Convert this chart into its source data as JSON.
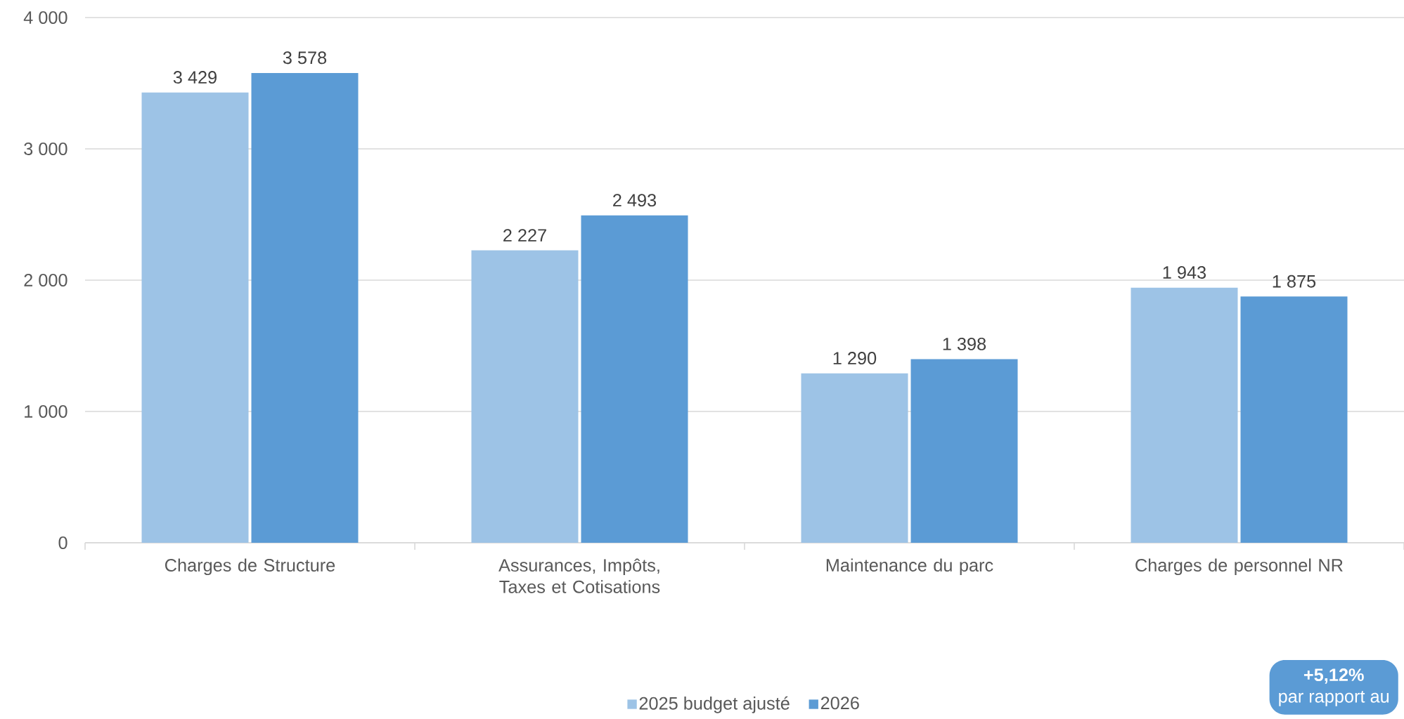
{
  "chart_data": {
    "type": "bar",
    "categories": [
      "Charges de Structure",
      "Assurances, Impôts, Taxes et Cotisations",
      "Maintenance du parc",
      "Charges de personnel NR"
    ],
    "series": [
      {
        "name": "2025 budget ajusté",
        "color": "#9dc3e6",
        "values": [
          3429,
          2227,
          1290,
          1943
        ],
        "value_labels": [
          "3 429",
          "2 227",
          "1 290",
          "1 943"
        ]
      },
      {
        "name": "2026",
        "color": "#5b9bd5",
        "values": [
          3578,
          2493,
          1398,
          1875
        ],
        "value_labels": [
          "3 578",
          "2 493",
          "1 398",
          "1 875"
        ]
      }
    ],
    "ylim": [
      0,
      4000
    ],
    "yticks": [
      0,
      {
        "value": 1000,
        "label": "1 000"
      },
      {
        "value": 2000,
        "label": "2 000"
      },
      {
        "value": 3000,
        "label": "3 000"
      },
      {
        "value": 4000,
        "label": "4 000"
      }
    ],
    "grid": "y",
    "legend": "bottom",
    "annotations": [
      "+5,12%",
      "par rapport au"
    ]
  }
}
